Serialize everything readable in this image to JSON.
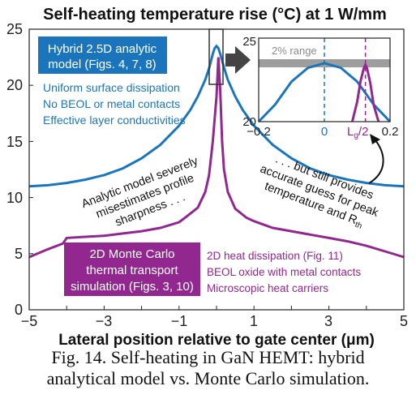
{
  "chart_data": {
    "type": "line",
    "title": "Self-heating temperature rise (°C) at 1 W/mm",
    "xlabel": "Lateral position relative to gate center (μm)",
    "ylabel": "",
    "xlim": [
      -5,
      5
    ],
    "ylim": [
      0,
      25
    ],
    "x_ticks": [
      "−5",
      "−3",
      "−1",
      "1",
      "3",
      "5"
    ],
    "y_ticks": [
      "0",
      "5",
      "10",
      "15",
      "20",
      "25"
    ],
    "grid": false,
    "series": [
      {
        "name": "Hybrid 2.5D analytic model",
        "color": "#1b75bc",
        "x": [
          -5,
          -4.5,
          -4,
          -3.5,
          -3,
          -2.5,
          -2,
          -1.5,
          -1,
          -0.7,
          -0.5,
          -0.3,
          -0.2,
          -0.1,
          -0.05,
          0,
          0.05,
          0.1,
          0.2,
          0.3,
          0.5,
          0.7,
          1,
          1.5,
          2,
          2.5,
          3,
          3.5,
          4,
          4.5,
          5
        ],
        "y": [
          11.0,
          11.1,
          11.3,
          11.6,
          12.0,
          12.6,
          13.5,
          14.7,
          16.4,
          17.8,
          19.0,
          20.5,
          21.5,
          22.8,
          23.3,
          23.5,
          23.3,
          22.8,
          21.6,
          20.5,
          19.0,
          17.8,
          16.4,
          14.7,
          13.5,
          12.6,
          12.0,
          11.6,
          11.3,
          11.1,
          11.0
        ]
      },
      {
        "name": "2D Monte Carlo thermal transport simulation",
        "color": "#92278f",
        "x": [
          -5,
          -4.5,
          -4.1,
          -4.0,
          -3.5,
          -3,
          -2.5,
          -2,
          -1.5,
          -1,
          -0.8,
          -0.5,
          -0.3,
          -0.2,
          -0.1,
          0,
          0.05,
          0.1,
          0.15,
          0.2,
          0.3,
          0.5,
          0.8,
          1,
          1.5,
          2,
          2.5,
          3,
          3.5,
          4,
          4.5,
          5
        ],
        "y": [
          4.7,
          5.4,
          5.9,
          6.4,
          6.5,
          6.6,
          6.8,
          7.0,
          7.3,
          7.8,
          8.3,
          9.1,
          10.5,
          12.0,
          15.0,
          19.0,
          22.5,
          19.5,
          15.0,
          12.5,
          10.5,
          9.0,
          8.2,
          7.9,
          7.3,
          7.0,
          6.7,
          6.4,
          6.1,
          5.7,
          5.2,
          4.7
        ]
      }
    ],
    "legend": [
      {
        "lines": [
          "Hybrid 2.5D analytic",
          "model (Figs. 4, 7, 8)"
        ],
        "notes": [
          "Uniform surface dissipation",
          "No BEOL or metal contacts",
          "Effective layer conductivities"
        ]
      },
      {
        "lines": [
          "2D Monte Carlo",
          "thermal transport",
          "simulation (Figs. 3, 10)"
        ],
        "notes": [
          "2D heat dissipation (Fig. 11)",
          "BEOL oxide with metal contacts",
          "Microscopic heat carriers"
        ]
      }
    ],
    "annotations": {
      "left": [
        "Analytic model severely",
        "misestimates profile",
        "sharpness . . ."
      ],
      "right": [
        ". . . but still provides",
        "accurate guess for peak",
        "temperature and R",
        "th"
      ]
    },
    "inset": {
      "xlim": [
        -0.2,
        0.2
      ],
      "ylim": [
        20,
        25
      ],
      "x_ticks": [
        "−0.2",
        "0",
        "0.2"
      ],
      "y_ticks": [
        "20",
        "25"
      ],
      "band_label": "2% range",
      "band": [
        23.0,
        23.5
      ],
      "vline_blue_x": 0,
      "vline_purple_x": 0.125,
      "lg_label": "L",
      "lg_sub": "g",
      "lg_suffix": "/2"
    }
  },
  "caption": {
    "line1": "Fig. 14.  Self-heating in GaN HEMT: hybrid",
    "line2": "analytical model vs. Monte Carlo simulation."
  }
}
